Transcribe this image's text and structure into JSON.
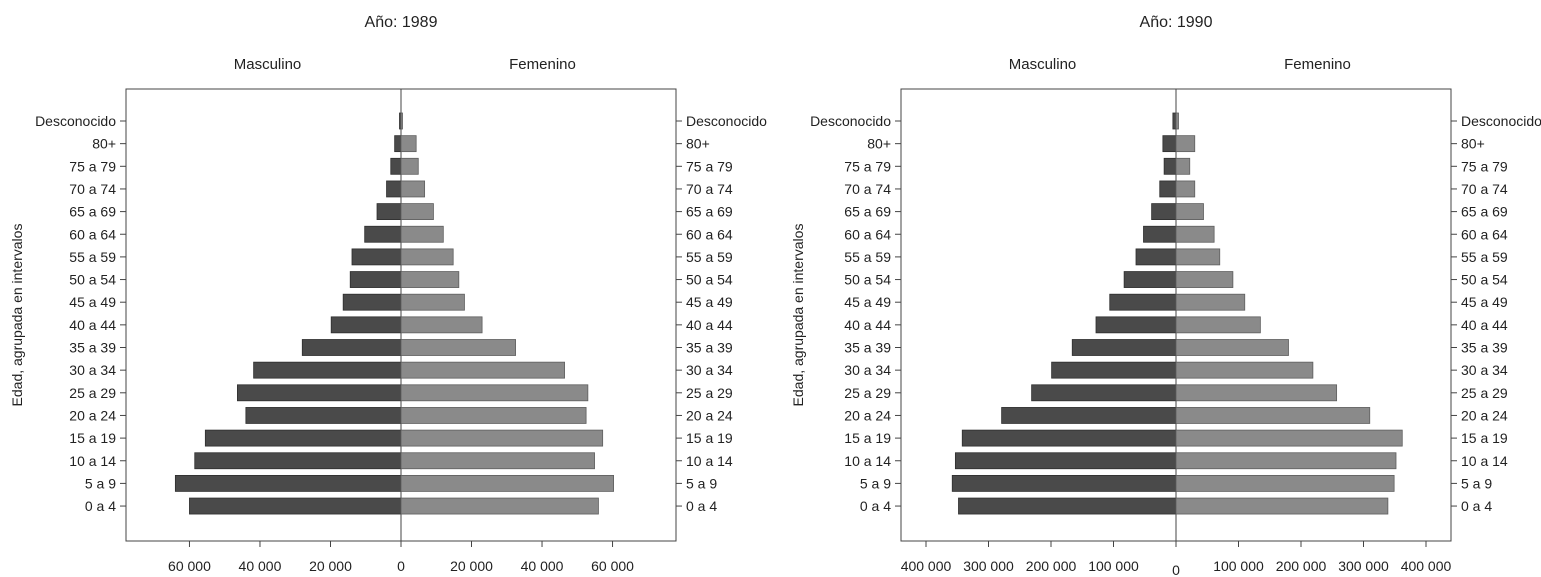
{
  "colors": {
    "male": "#4a4a4a",
    "female": "#8a8a8a",
    "axis": "#444444"
  },
  "chart_data": [
    {
      "type": "bar",
      "orientation": "population-pyramid",
      "title": "Año: 1989",
      "ylabel": "Edad, agrupada en intervalos",
      "categories": [
        "Desconocido",
        "80+",
        "75 a 79",
        "70 a 74",
        "65 a 69",
        "60 a 64",
        "55 a 59",
        "50 a 54",
        "45 a 49",
        "40 a 44",
        "35 a 39",
        "30 a 34",
        "25 a 29",
        "20 a 24",
        "15 a 19",
        "10 a 14",
        "5 a 9",
        "0 a 4"
      ],
      "series": [
        {
          "name": "Masculino",
          "side": "left",
          "values": [
            300,
            1800,
            2900,
            4100,
            6800,
            10300,
            13900,
            14400,
            16400,
            19800,
            28000,
            41800,
            46400,
            44000,
            55500,
            58500,
            64000,
            60000
          ]
        },
        {
          "name": "Femenino",
          "side": "right",
          "values": [
            200,
            4300,
            4900,
            6700,
            9200,
            12000,
            14800,
            16400,
            18000,
            23000,
            32500,
            46400,
            53000,
            52500,
            57200,
            54900,
            60300,
            56000
          ]
        }
      ],
      "xlim": [
        -78000,
        78000
      ],
      "xticks": [
        -60000,
        -40000,
        -20000,
        0,
        20000,
        40000,
        60000
      ],
      "xticklabels": [
        "60 000",
        "40 000",
        "20 000",
        "0",
        "20 000",
        "40 000",
        "60 000"
      ],
      "grid": false
    },
    {
      "type": "bar",
      "orientation": "population-pyramid",
      "title": "Año: 1990",
      "ylabel": "Edad, agrupada en intervalos",
      "categories": [
        "Desconocido",
        "80+",
        "75 a 79",
        "70 a 74",
        "65 a 69",
        "60 a 64",
        "55 a 59",
        "50 a 54",
        "45 a 49",
        "40 a 44",
        "35 a 39",
        "30 a 34",
        "25 a 29",
        "20 a 24",
        "15 a 19",
        "10 a 14",
        "5 a 9",
        "0 a 4"
      ],
      "series": [
        {
          "name": "Masculino",
          "side": "left",
          "values": [
            5000,
            21000,
            19000,
            26000,
            39000,
            52000,
            64000,
            83000,
            106000,
            128000,
            166000,
            199000,
            231000,
            279000,
            342000,
            353000,
            358000,
            348000
          ]
        },
        {
          "name": "Femenino",
          "side": "right",
          "values": [
            4000,
            30000,
            22000,
            30000,
            44000,
            61000,
            70000,
            91000,
            110000,
            135000,
            180000,
            219000,
            257000,
            310000,
            362000,
            352000,
            349000,
            339000
          ]
        }
      ],
      "xlim": [
        -440000,
        440000
      ],
      "xticks": [
        -400000,
        -300000,
        -200000,
        -100000,
        0,
        100000,
        200000,
        300000,
        400000
      ],
      "xticklabels": [
        "400 000",
        "300 000",
        "200 000",
        "100 000",
        "0",
        "100 000",
        "200 000",
        "300 000",
        "400 000"
      ],
      "grid": false
    }
  ]
}
